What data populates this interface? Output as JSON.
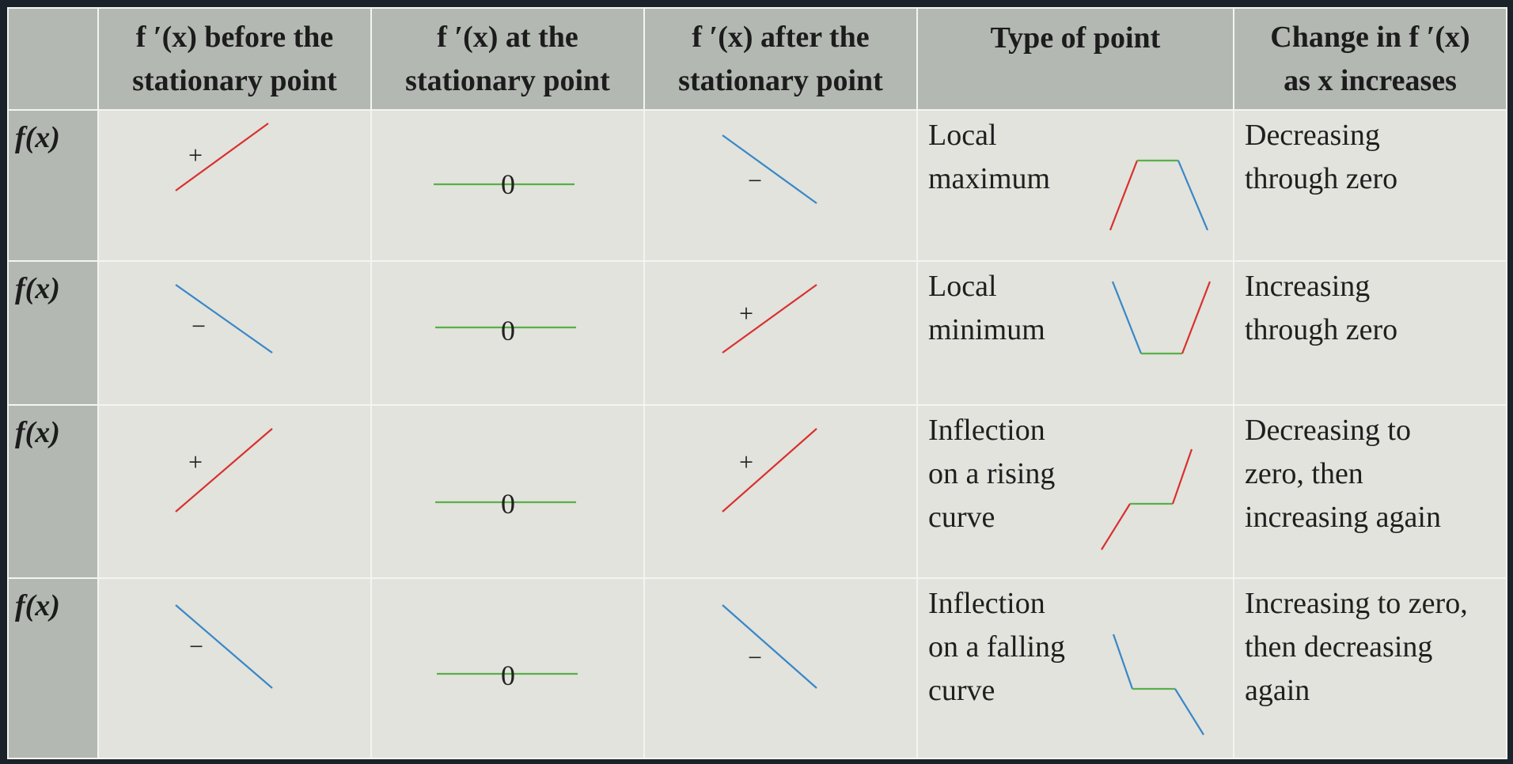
{
  "colors": {
    "positive": "#d9302f",
    "negative": "#3a86c8",
    "zero": "#58b048",
    "header_bg": "#b3b8b2",
    "cell_bg": "#e1e3dc",
    "frame": "#1b232a"
  },
  "headers": {
    "before": [
      "f ′(x) before the",
      "stationary point"
    ],
    "at": [
      "f ′(x) at the",
      "stationary point"
    ],
    "after": [
      "f ′(x) after the",
      "stationary point"
    ],
    "type": [
      "Type of point"
    ],
    "change": [
      "Change in f ′(x)",
      "as x increases"
    ]
  },
  "rows": [
    {
      "label": "f(x)",
      "before_sign": "+",
      "before_slope": "positive",
      "zero_label": "0",
      "after_sign": "−",
      "after_slope": "negative",
      "type_lines": [
        "Local",
        "maximum"
      ],
      "type_icon": "local-maximum-sketch",
      "change_lines": [
        "Decreasing",
        "through zero"
      ]
    },
    {
      "label": "f(x)",
      "before_sign": "−",
      "before_slope": "negative",
      "zero_label": "0",
      "after_sign": "+",
      "after_slope": "positive",
      "type_lines": [
        "Local",
        "minimum"
      ],
      "type_icon": "local-minimum-sketch",
      "change_lines": [
        "Increasing",
        "through zero"
      ]
    },
    {
      "label": "f(x)",
      "before_sign": "+",
      "before_slope": "positive",
      "zero_label": "0",
      "after_sign": "+",
      "after_slope": "positive",
      "type_lines": [
        "Inflection",
        "on a rising",
        "curve"
      ],
      "type_icon": "rising-inflection-sketch",
      "change_lines": [
        "Decreasing to",
        "zero, then",
        "increasing again"
      ]
    },
    {
      "label": "f(x)",
      "before_sign": "−",
      "before_slope": "negative",
      "zero_label": "0",
      "after_sign": "−",
      "after_slope": "negative",
      "type_lines": [
        "Inflection",
        "on a falling",
        "curve"
      ],
      "type_icon": "falling-inflection-sketch",
      "change_lines": [
        "Increasing to zero,",
        "then decreasing",
        "again"
      ]
    }
  ]
}
